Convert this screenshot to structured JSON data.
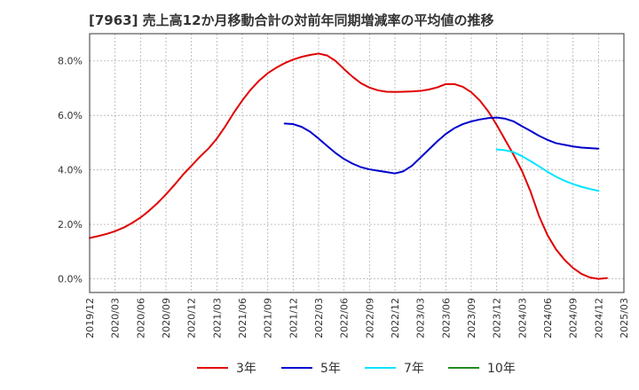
{
  "chart_data": {
    "type": "line",
    "title": "[7963]  売上高12か月移動合計の対前年同期増減率の平均値の推移",
    "xlabel": "",
    "ylabel": "",
    "ylim": [
      -0.5,
      9.0
    ],
    "y_ticks": [
      "0.0%",
      "2.0%",
      "4.0%",
      "6.0%",
      "8.0%"
    ],
    "y_tick_values": [
      0,
      2,
      4,
      6,
      8
    ],
    "x_ticks": [
      "2019/12",
      "2020/03",
      "2020/06",
      "2020/09",
      "2020/12",
      "2021/03",
      "2021/06",
      "2021/09",
      "2021/12",
      "2022/03",
      "2022/06",
      "2022/09",
      "2022/12",
      "2023/03",
      "2023/06",
      "2023/09",
      "2023/12",
      "2024/03",
      "2024/06",
      "2024/09",
      "2024/12",
      "2025/03"
    ],
    "grid": true,
    "legend_position": "bottom",
    "series": [
      {
        "name": "3年",
        "color": "#e00000",
        "points": [
          [
            "2019/12",
            1.5
          ],
          [
            "2020/01",
            1.57
          ],
          [
            "2020/02",
            1.65
          ],
          [
            "2020/03",
            1.75
          ],
          [
            "2020/04",
            1.88
          ],
          [
            "2020/05",
            2.05
          ],
          [
            "2020/06",
            2.25
          ],
          [
            "2020/07",
            2.5
          ],
          [
            "2020/08",
            2.78
          ],
          [
            "2020/09",
            3.1
          ],
          [
            "2020/10",
            3.45
          ],
          [
            "2020/11",
            3.82
          ],
          [
            "2020/12",
            4.15
          ],
          [
            "2021/01",
            4.48
          ],
          [
            "2021/02",
            4.78
          ],
          [
            "2021/03",
            5.15
          ],
          [
            "2021/04",
            5.6
          ],
          [
            "2021/05",
            6.1
          ],
          [
            "2021/06",
            6.55
          ],
          [
            "2021/07",
            6.95
          ],
          [
            "2021/08",
            7.28
          ],
          [
            "2021/09",
            7.55
          ],
          [
            "2021/10",
            7.75
          ],
          [
            "2021/11",
            7.92
          ],
          [
            "2021/12",
            8.05
          ],
          [
            "2022/01",
            8.15
          ],
          [
            "2022/02",
            8.22
          ],
          [
            "2022/03",
            8.27
          ],
          [
            "2022/04",
            8.2
          ],
          [
            "2022/05",
            8.0
          ],
          [
            "2022/06",
            7.7
          ],
          [
            "2022/07",
            7.42
          ],
          [
            "2022/08",
            7.18
          ],
          [
            "2022/09",
            7.02
          ],
          [
            "2022/10",
            6.92
          ],
          [
            "2022/11",
            6.87
          ],
          [
            "2022/12",
            6.86
          ],
          [
            "2023/01",
            6.87
          ],
          [
            "2023/02",
            6.88
          ],
          [
            "2023/03",
            6.9
          ],
          [
            "2023/04",
            6.95
          ],
          [
            "2023/05",
            7.03
          ],
          [
            "2023/06",
            7.15
          ],
          [
            "2023/07",
            7.15
          ],
          [
            "2023/08",
            7.05
          ],
          [
            "2023/09",
            6.85
          ],
          [
            "2023/10",
            6.55
          ],
          [
            "2023/11",
            6.15
          ],
          [
            "2023/12",
            5.65
          ],
          [
            "2024/01",
            5.1
          ],
          [
            "2024/02",
            4.55
          ],
          [
            "2024/03",
            3.95
          ],
          [
            "2024/04",
            3.2
          ],
          [
            "2024/05",
            2.3
          ],
          [
            "2024/06",
            1.6
          ],
          [
            "2024/07",
            1.08
          ],
          [
            "2024/08",
            0.7
          ],
          [
            "2024/09",
            0.4
          ],
          [
            "2024/10",
            0.18
          ],
          [
            "2024/11",
            0.05
          ],
          [
            "2024/12",
            0.0
          ],
          [
            "2025/01",
            0.03
          ]
        ]
      },
      {
        "name": "5年",
        "color": "#0000cc",
        "points": [
          [
            "2021/11",
            5.7
          ],
          [
            "2021/12",
            5.68
          ],
          [
            "2022/01",
            5.58
          ],
          [
            "2022/02",
            5.4
          ],
          [
            "2022/03",
            5.15
          ],
          [
            "2022/04",
            4.88
          ],
          [
            "2022/05",
            4.62
          ],
          [
            "2022/06",
            4.4
          ],
          [
            "2022/07",
            4.23
          ],
          [
            "2022/08",
            4.1
          ],
          [
            "2022/09",
            4.02
          ],
          [
            "2022/10",
            3.97
          ],
          [
            "2022/11",
            3.92
          ],
          [
            "2022/12",
            3.87
          ],
          [
            "2023/01",
            3.95
          ],
          [
            "2023/02",
            4.15
          ],
          [
            "2023/03",
            4.45
          ],
          [
            "2023/04",
            4.75
          ],
          [
            "2023/05",
            5.05
          ],
          [
            "2023/06",
            5.32
          ],
          [
            "2023/07",
            5.53
          ],
          [
            "2023/08",
            5.68
          ],
          [
            "2023/09",
            5.78
          ],
          [
            "2023/10",
            5.85
          ],
          [
            "2023/11",
            5.9
          ],
          [
            "2023/12",
            5.92
          ],
          [
            "2024/01",
            5.88
          ],
          [
            "2024/02",
            5.78
          ],
          [
            "2024/03",
            5.6
          ],
          [
            "2024/04",
            5.43
          ],
          [
            "2024/05",
            5.25
          ],
          [
            "2024/06",
            5.1
          ],
          [
            "2024/07",
            4.98
          ],
          [
            "2024/08",
            4.92
          ],
          [
            "2024/09",
            4.86
          ],
          [
            "2024/10",
            4.82
          ],
          [
            "2024/11",
            4.8
          ],
          [
            "2024/12",
            4.78
          ]
        ]
      },
      {
        "name": "7年",
        "color": "#00e5ff",
        "points": [
          [
            "2023/12",
            4.75
          ],
          [
            "2024/01",
            4.72
          ],
          [
            "2024/02",
            4.65
          ],
          [
            "2024/03",
            4.5
          ],
          [
            "2024/04",
            4.32
          ],
          [
            "2024/05",
            4.13
          ],
          [
            "2024/06",
            3.93
          ],
          [
            "2024/07",
            3.75
          ],
          [
            "2024/08",
            3.6
          ],
          [
            "2024/09",
            3.48
          ],
          [
            "2024/10",
            3.38
          ],
          [
            "2024/11",
            3.3
          ],
          [
            "2024/12",
            3.23
          ]
        ]
      },
      {
        "name": "10年",
        "color": "#228b22",
        "points": []
      }
    ]
  }
}
